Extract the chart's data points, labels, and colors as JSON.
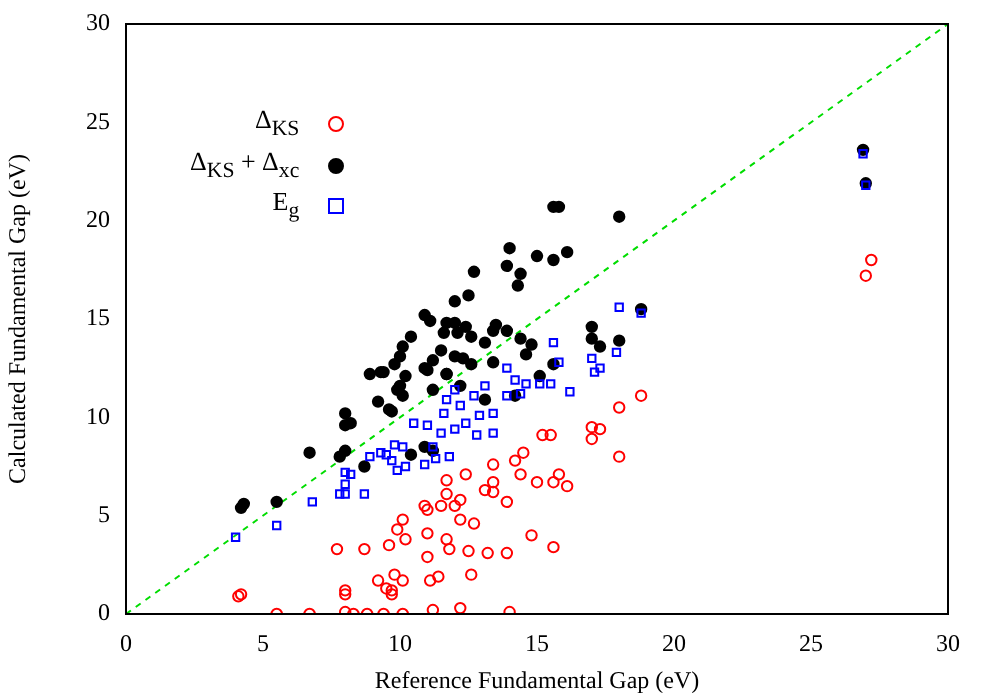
{
  "chart_data": {
    "type": "scatter",
    "xlabel": "Reference Fundamental Gap (eV)",
    "ylabel": "Calculated Fundamental Gap (eV)",
    "xlim": [
      0,
      30
    ],
    "ylim": [
      0,
      30
    ],
    "xticks": [
      0,
      5,
      10,
      15,
      20,
      25,
      30
    ],
    "yticks": [
      0,
      5,
      10,
      15,
      20,
      25,
      30
    ],
    "grid": false,
    "legend": "top left",
    "series": [
      {
        "name": "Δ$_{KS}$",
        "color": "#ff0000",
        "marker": "circle",
        "x": [
          27.0,
          27.2,
          18.8,
          18.0,
          17.0,
          17.3,
          17.0,
          18.0,
          15.5,
          15.2,
          14.5,
          14.2,
          14.4,
          13.4,
          15.8,
          15.6,
          15.0,
          16.1,
          13.4,
          13.4,
          13.1,
          12.4,
          11.7,
          11.7,
          13.9,
          12.2,
          12.0,
          11.5,
          11.0,
          10.9,
          12.7,
          12.2,
          10.1,
          10.2,
          11.0,
          11.7,
          14.8,
          15.6,
          13.2,
          13.9,
          12.5,
          11.8,
          11.0,
          9.6,
          8.7,
          12.6,
          11.4,
          11.1,
          9.8,
          10.1,
          9.5,
          9.7,
          12.2,
          11.2,
          10.1,
          9.4,
          8.8,
          14.0,
          7.7,
          4.2,
          4.1,
          5.5,
          6.7,
          8.0,
          8.0,
          8.0,
          9.2,
          9.7,
          9.9,
          8.3
        ],
        "values": [
          17.2,
          18.0,
          11.1,
          10.5,
          9.5,
          9.4,
          8.9,
          8.0,
          9.1,
          9.1,
          8.2,
          7.8,
          7.1,
          7.6,
          7.1,
          6.7,
          6.7,
          6.5,
          6.7,
          6.2,
          6.3,
          7.1,
          6.8,
          6.1,
          5.7,
          5.8,
          5.5,
          5.5,
          5.3,
          5.5,
          4.6,
          4.8,
          4.8,
          3.8,
          4.1,
          3.8,
          4.0,
          3.4,
          3.1,
          3.1,
          3.2,
          3.3,
          2.9,
          3.5,
          3.3,
          2.0,
          1.9,
          1.7,
          2.0,
          1.7,
          1.3,
          1.0,
          0.3,
          0.2,
          0,
          0,
          0,
          0.1,
          3.3,
          1.0,
          0.9,
          0,
          0,
          0.1,
          1.2,
          1.0,
          1.7,
          1.2,
          4.3,
          0
        ]
      },
      {
        "name": "Δ$_{KS}$ + Δ$_{xc}$",
        "color": "#000000",
        "marker": "circle",
        "x": [
          26.9,
          27.0,
          15.6,
          15.8,
          18.0,
          14.0,
          15.0,
          15.6,
          16.1,
          13.9,
          14.4,
          14.3,
          12.7,
          12.5,
          12.0,
          10.9,
          11.1,
          10.4,
          10.1,
          10.0,
          9.8,
          9.4,
          8.9,
          11.7,
          12.0,
          12.4,
          11.6,
          12.1,
          12.6,
          13.1,
          13.4,
          13.5,
          13.9,
          14.4,
          14.8,
          14.6,
          11.5,
          12.0,
          12.3,
          11.2,
          10.9,
          11.7,
          12.6,
          13.4,
          17.0,
          17.0,
          17.3,
          18.0,
          18.8,
          15.1,
          15.6,
          4.2,
          4.3,
          5.5,
          6.7,
          7.8,
          8.0,
          8.0,
          8.2,
          8.0,
          8.7,
          9.2,
          9.3,
          9.7,
          9.9,
          9.6,
          10.0,
          10.1,
          10.2,
          11.0,
          11.2,
          11.7,
          12.2,
          13.1,
          14.2,
          10.9,
          11.2,
          10.4
        ],
        "values": [
          23.6,
          21.9,
          20.7,
          20.7,
          20.2,
          18.6,
          18.2,
          18.0,
          18.4,
          17.7,
          17.3,
          16.7,
          17.4,
          16.2,
          15.9,
          15.2,
          14.9,
          14.1,
          13.6,
          13.1,
          12.7,
          12.3,
          12.2,
          14.8,
          14.8,
          14.6,
          14.3,
          14.3,
          14.1,
          13.8,
          14.4,
          14.7,
          14.4,
          14.0,
          13.7,
          13.2,
          13.4,
          13.1,
          13.0,
          12.9,
          12.5,
          12.2,
          12.7,
          12.8,
          14.6,
          14.0,
          13.6,
          13.9,
          15.5,
          12.1,
          12.7,
          5.4,
          5.6,
          5.7,
          8.2,
          8.0,
          8.3,
          9.6,
          9.7,
          10.2,
          7.5,
          10.8,
          12.3,
          10.3,
          11.4,
          10.4,
          11.6,
          11.1,
          12.1,
          12.4,
          11.4,
          12.2,
          11.6,
          10.9,
          11.1,
          8.5,
          8.3,
          8.1
        ]
      },
      {
        "name": "E$_{g}$",
        "color": "#0000ff",
        "marker": "square",
        "x": [
          26.9,
          27.0,
          15.6,
          18.0,
          18.8,
          17.0,
          17.9,
          15.8,
          17.3,
          13.9,
          4.0,
          5.5,
          6.8,
          7.8,
          8.0,
          8.0,
          8.2,
          8.0,
          8.7,
          8.9,
          9.3,
          9.8,
          9.7,
          9.5,
          9.9,
          10.2,
          10.9,
          11.3,
          11.8,
          11.0,
          11.5,
          12.0,
          12.4,
          12.9,
          13.4,
          13.4,
          12.2,
          11.7,
          11.6,
          11.2,
          10.1,
          10.5,
          12.8,
          14.2,
          14.6,
          15.1,
          15.5,
          16.2,
          14.4,
          13.9,
          12.7,
          17.1,
          13.1,
          12.0
        ],
        "values": [
          23.4,
          21.8,
          13.8,
          15.6,
          15.3,
          13.0,
          13.3,
          12.8,
          12.5,
          12.5,
          3.9,
          4.5,
          5.7,
          6.1,
          6.1,
          6.6,
          7.1,
          7.2,
          6.1,
          8.0,
          8.2,
          8.6,
          7.8,
          8.1,
          7.3,
          7.5,
          7.6,
          7.9,
          8.0,
          9.6,
          9.2,
          9.4,
          9.7,
          10.1,
          9.2,
          10.2,
          10.6,
          10.9,
          10.2,
          8.5,
          8.5,
          9.7,
          9.1,
          11.9,
          11.7,
          11.7,
          11.7,
          11.3,
          11.2,
          11.1,
          11.1,
          12.3,
          11.6,
          11.4
        ]
      },
      {
        "type": "line",
        "color": "#00dd00",
        "line_style": "dashed",
        "marker": "none",
        "x": [
          0,
          30
        ],
        "values": [
          0,
          30
        ]
      }
    ]
  }
}
